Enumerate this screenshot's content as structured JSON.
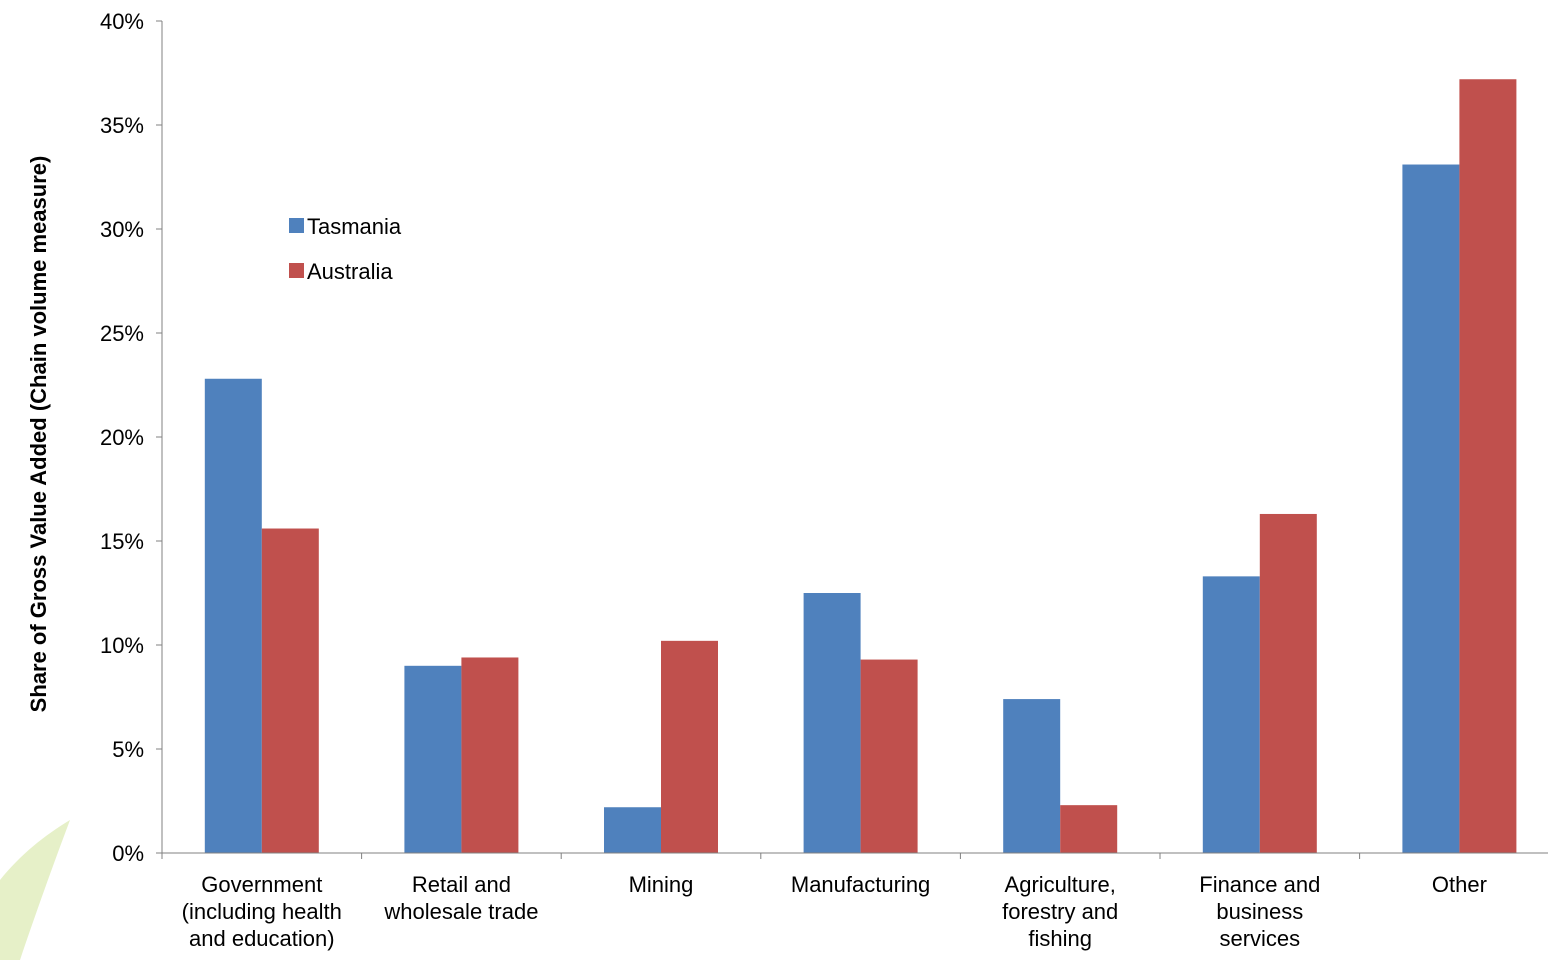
{
  "chart_data": {
    "type": "bar",
    "title": "",
    "xlabel": "",
    "ylabel": "Share of Gross Value Added (Chain volume measure)",
    "ylim": [
      0,
      40
    ],
    "yticks": [
      "0%",
      "5%",
      "10%",
      "15%",
      "20%",
      "25%",
      "30%",
      "35%",
      "40%"
    ],
    "grid": false,
    "legend_position": "upper-left inside plot",
    "categories": [
      [
        "Government",
        "(including health",
        "and education)"
      ],
      [
        "Retail and",
        "wholesale trade"
      ],
      [
        "Mining"
      ],
      [
        "Manufacturing"
      ],
      [
        "Agriculture,",
        "forestry and",
        "fishing"
      ],
      [
        "Finance and",
        "business",
        "services"
      ],
      [
        "Other"
      ]
    ],
    "series": [
      {
        "name": "Tasmania",
        "color": "#4F81BD",
        "values": [
          22.8,
          9.0,
          2.2,
          12.5,
          7.4,
          13.3,
          33.1
        ]
      },
      {
        "name": "Australia",
        "color": "#C0504D",
        "values": [
          15.6,
          9.4,
          10.2,
          9.3,
          2.3,
          16.3,
          37.2
        ]
      }
    ]
  }
}
